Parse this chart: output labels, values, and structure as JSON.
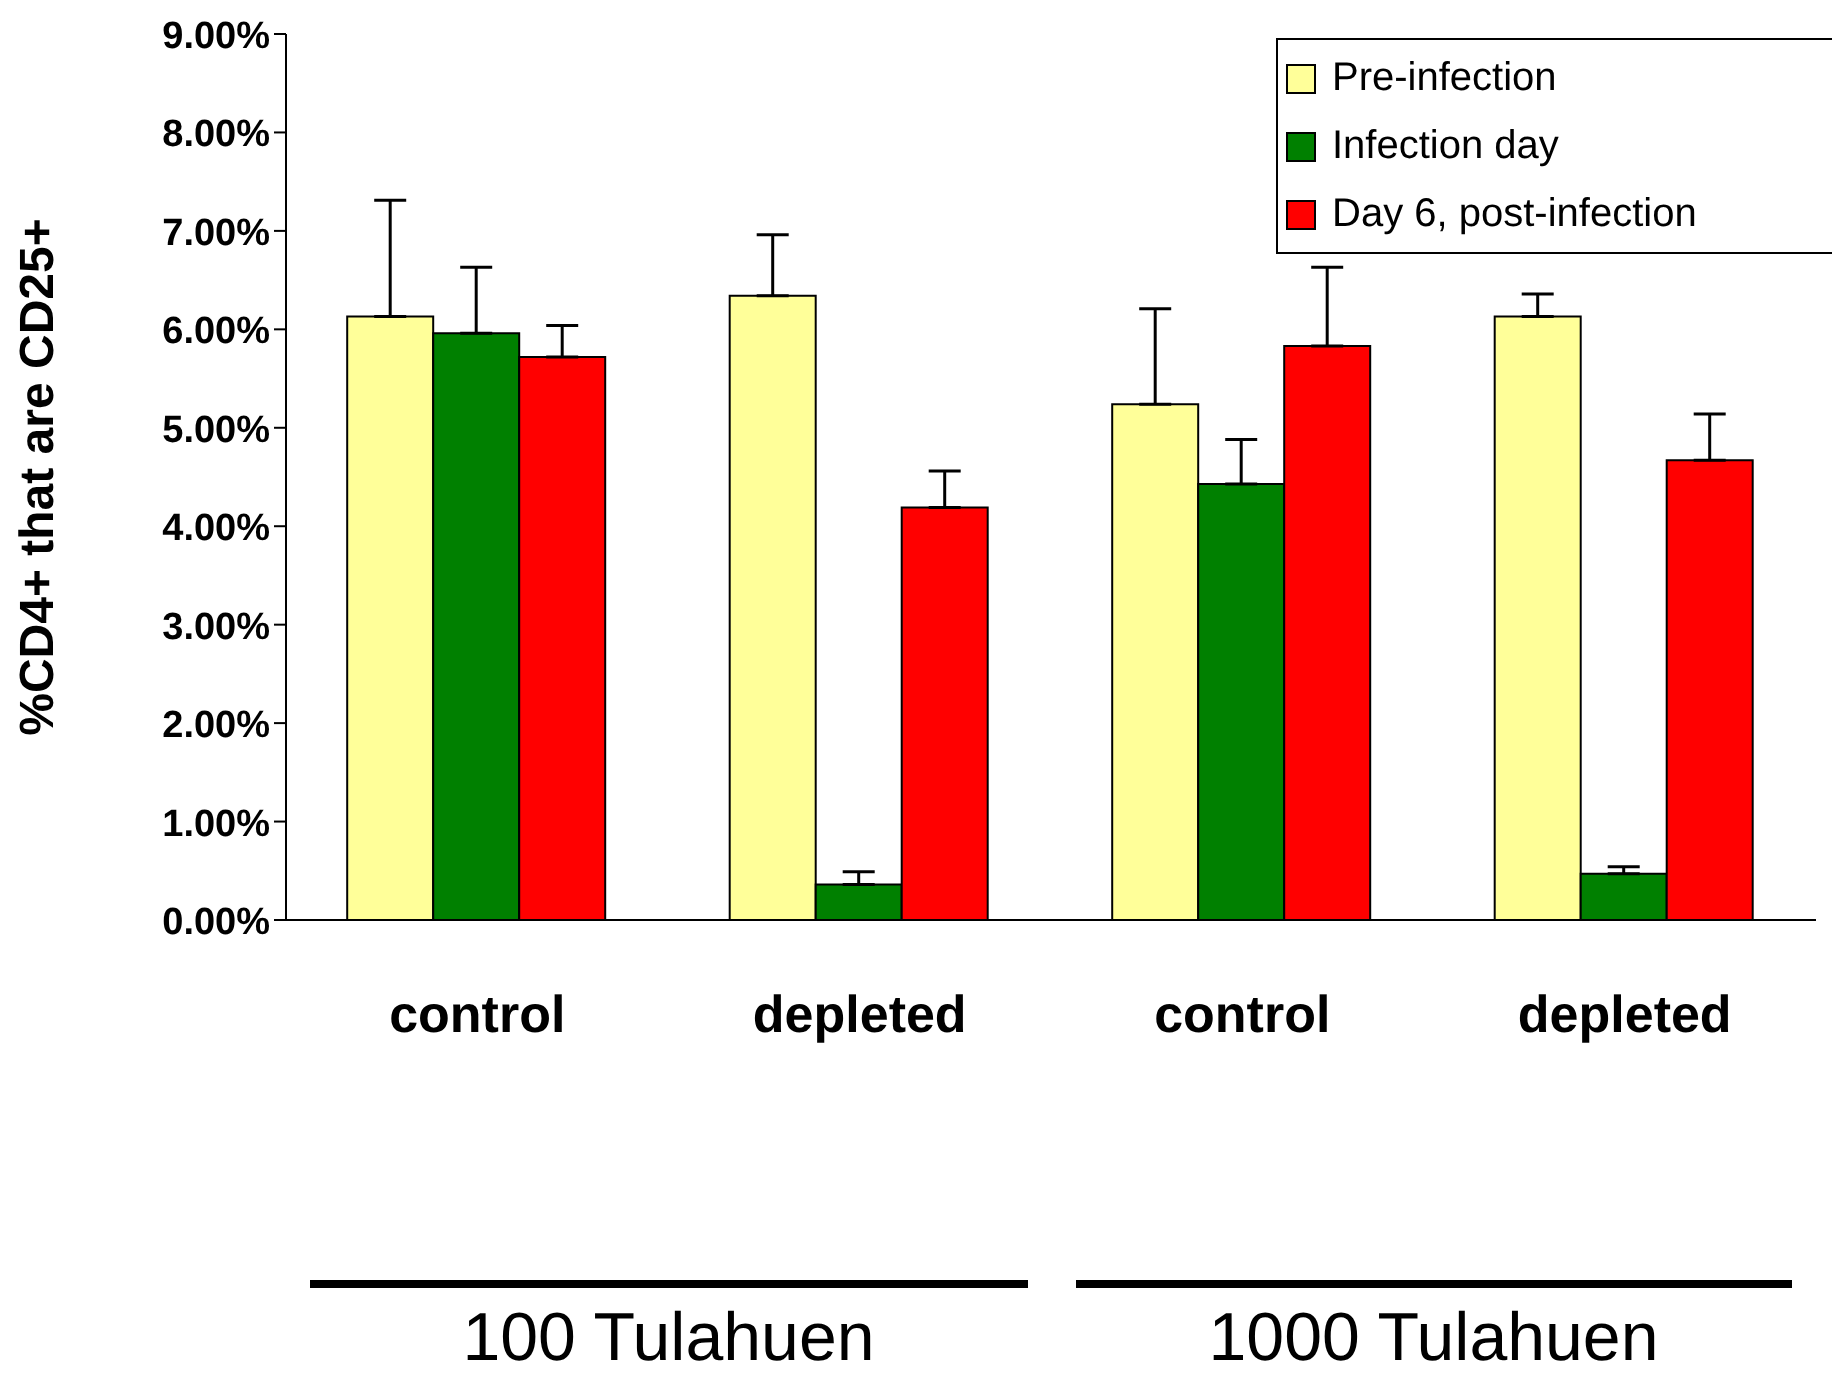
{
  "chart_data": {
    "type": "bar",
    "ylabel": "%CD4+ that are CD25+",
    "categories": [
      "control",
      "depleted",
      "control",
      "depleted"
    ],
    "series": [
      {
        "name": "Pre-infection",
        "color": "#ffff99",
        "values": [
          6.13,
          6.34,
          5.24,
          6.13
        ],
        "errors": [
          [
            6.13,
            7.31
          ],
          [
            6.34,
            6.96
          ],
          [
            5.24,
            6.21
          ],
          [
            6.13,
            6.36
          ]
        ]
      },
      {
        "name": "Infection day",
        "color": "#008000",
        "values": [
          5.96,
          0.36,
          4.43,
          0.47
        ],
        "errors": [
          [
            5.96,
            6.63
          ],
          [
            0.36,
            0.49
          ],
          [
            4.43,
            4.88
          ],
          [
            0.47,
            0.54
          ]
        ]
      },
      {
        "name": "Day 6, post-infection",
        "color": "#ff0000",
        "values": [
          5.72,
          4.19,
          5.83,
          4.67
        ],
        "errors": [
          [
            5.72,
            6.04
          ],
          [
            4.19,
            4.56
          ],
          [
            5.83,
            6.63
          ],
          [
            4.67,
            5.14
          ]
        ]
      }
    ],
    "ylim": [
      0,
      9
    ],
    "yticks": [
      {
        "value": 0,
        "label": "0.00%"
      },
      {
        "value": 1,
        "label": "1.00%"
      },
      {
        "value": 2,
        "label": "2.00%"
      },
      {
        "value": 3,
        "label": "3.00%"
      },
      {
        "value": 4,
        "label": "4.00%"
      },
      {
        "value": 5,
        "label": "5.00%"
      },
      {
        "value": 6,
        "label": "6.00%"
      },
      {
        "value": 7,
        "label": "7.00%"
      },
      {
        "value": 8,
        "label": "8.00%"
      },
      {
        "value": 9,
        "label": "9.00%"
      }
    ],
    "legend": "top right",
    "grid": false,
    "annotations": [
      "100 Tulahuen",
      "1000 Tulahuen"
    ]
  }
}
